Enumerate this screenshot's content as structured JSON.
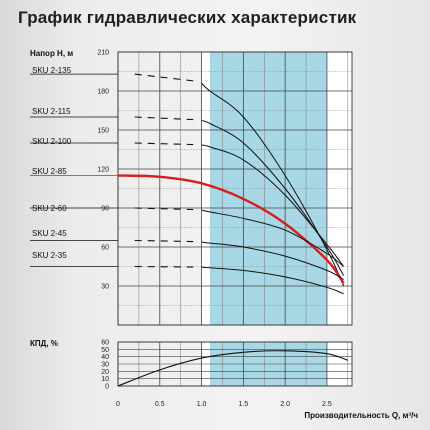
{
  "title": "График гидравлических характеристик",
  "chart_data": [
    {
      "type": "line",
      "ylabel": "Напор H, м",
      "xlim": [
        0,
        2.8
      ],
      "ylim": [
        0,
        210
      ],
      "yticks": [
        30,
        60,
        90,
        120,
        150,
        180,
        210
      ],
      "highlight_band": [
        1.1,
        2.5
      ],
      "colors": {
        "band": "#a8d8e6",
        "line": "#111111",
        "highlight": "#d42020",
        "grid": "#555555"
      },
      "series": [
        {
          "name": "SKU 2-135",
          "highlight": false,
          "shutoff": 193,
          "x": [
            1.1,
            1.5,
            2.0,
            2.5,
            2.7
          ],
          "y": [
            180,
            160,
            115,
            58,
            30
          ]
        },
        {
          "name": "SKU 2-115",
          "highlight": false,
          "shutoff": 160,
          "x": [
            1.1,
            1.5,
            2.0,
            2.5,
            2.7
          ],
          "y": [
            155,
            140,
            105,
            60,
            38
          ]
        },
        {
          "name": "SKU 2-100",
          "highlight": false,
          "shutoff": 140,
          "x": [
            1.1,
            1.5,
            2.0,
            2.5,
            2.7
          ],
          "y": [
            137,
            127,
            100,
            62,
            45
          ]
        },
        {
          "name": "SKU 2-85",
          "highlight": true,
          "shutoff": 115,
          "x": [
            0,
            0.5,
            1.0,
            1.5,
            2.0,
            2.5,
            2.7
          ],
          "y": [
            115,
            114,
            109,
            97,
            78,
            50,
            32
          ]
        },
        {
          "name": "SKU 2-60",
          "highlight": false,
          "shutoff": 90,
          "x": [
            1.1,
            1.5,
            2.0,
            2.5,
            2.7
          ],
          "y": [
            87,
            82,
            73,
            55,
            45
          ]
        },
        {
          "name": "SKU 2-45",
          "highlight": false,
          "shutoff": 65,
          "x": [
            1.1,
            1.5,
            2.0,
            2.5,
            2.7
          ],
          "y": [
            63,
            60,
            53,
            42,
            35
          ]
        },
        {
          "name": "SKU 2-35",
          "highlight": false,
          "shutoff": 45,
          "x": [
            1.1,
            1.5,
            2.0,
            2.5,
            2.7
          ],
          "y": [
            44,
            42,
            37,
            29,
            24
          ]
        }
      ]
    },
    {
      "type": "line",
      "ylabel": "КПД, %",
      "xlabel": "Производительность Q, м³/ч",
      "xlim": [
        0,
        2.8
      ],
      "ylim": [
        0,
        60
      ],
      "xticks": [
        0,
        0.5,
        1.0,
        1.5,
        2.0,
        2.5
      ],
      "xtick_labels": [
        "0",
        "0.5",
        "1.0",
        "1.5",
        "2.0",
        "2.5"
      ],
      "yticks": [
        0,
        10,
        20,
        30,
        40,
        50,
        60
      ],
      "series": [
        {
          "x": [
            0,
            0.5,
            1.0,
            1.5,
            2.0,
            2.5,
            2.75
          ],
          "y": [
            0,
            22,
            38,
            46,
            48,
            44,
            35
          ]
        }
      ]
    }
  ]
}
